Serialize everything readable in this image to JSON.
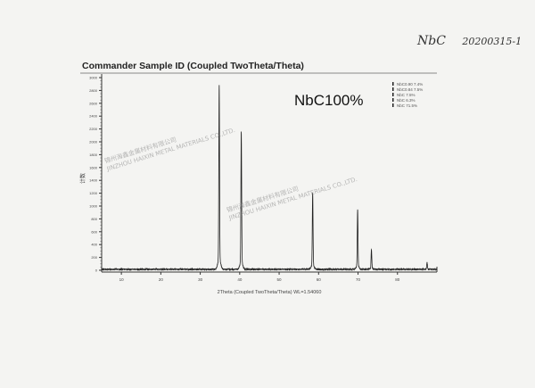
{
  "handwritten_note": {
    "sample": "NbC",
    "code": "20200315-1"
  },
  "watermark": {
    "cn": "锦州海鑫金属材料有限公司",
    "en": "JINZHOU HAIXIN METAL MATERIALS CO.,LTD."
  },
  "chart_data": {
    "type": "line",
    "title": "Commander Sample ID (Coupled TwoTheta/Theta)",
    "annotation": "NbC100%",
    "xlabel": "2Theta (Coupled TwoTheta/Theta) WL=1.54060",
    "ylabel": "计数",
    "xlim": [
      5,
      90
    ],
    "ylim": [
      0,
      3000
    ],
    "xticks": [
      10,
      20,
      30,
      40,
      50,
      60,
      70,
      80
    ],
    "yticks": [
      0,
      200,
      400,
      600,
      800,
      1000,
      1200,
      1400,
      1600,
      1800,
      2000,
      2200,
      2400,
      2600,
      2800,
      3000
    ],
    "grid": false,
    "line_color": "#222222",
    "peaks": [
      {
        "x": 34.8,
        "y": 2700
      },
      {
        "x": 40.4,
        "y": 2030
      },
      {
        "x": 58.5,
        "y": 1130
      },
      {
        "x": 69.9,
        "y": 880
      },
      {
        "x": 73.4,
        "y": 290
      },
      {
        "x": 87.5,
        "y": 100
      }
    ],
    "baseline": 15,
    "legend_position": "top-right",
    "legend": [
      {
        "label": "NbC0.90 7.4%"
      },
      {
        "label": "NbC0.84 7.5%"
      },
      {
        "label": "NbC 7.5%"
      },
      {
        "label": "NbC 6.3%"
      },
      {
        "label": "NbC 71.5%"
      }
    ]
  }
}
